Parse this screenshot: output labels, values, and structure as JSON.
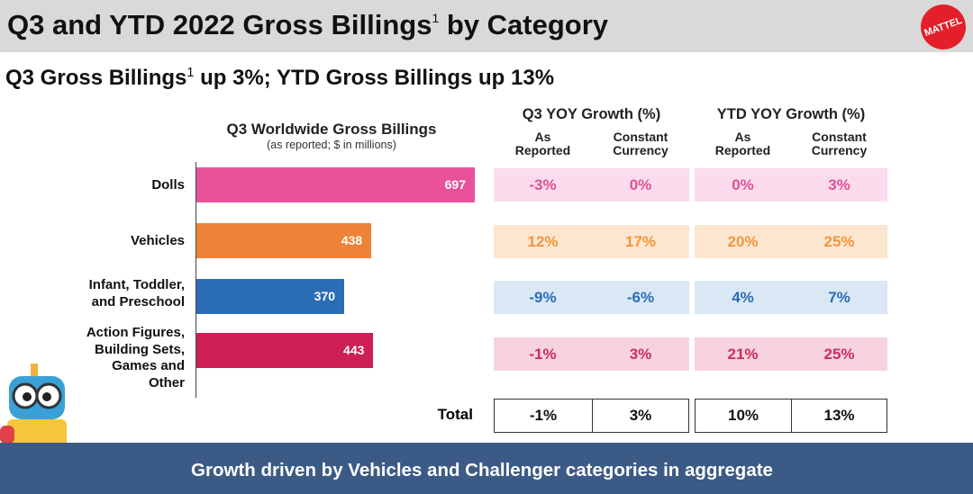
{
  "header": {
    "title": "Q3 and YTD 2022 Gross Billings",
    "title_sup": "1",
    "title_tail": " by Category",
    "logo": "MATTEL"
  },
  "subtitle": {
    "a": "Q3 Gross Billings",
    "sup": "1",
    "b": " up 3%; YTD Gross Billings up 13%"
  },
  "chart_data": {
    "type": "bar",
    "orientation": "horizontal",
    "title": "Q3 Worldwide Gross Billings",
    "subtitle": "(as reported; $ in millions)",
    "categories": [
      "Dolls",
      "Vehicles",
      "Infant, Toddler, and Preschool",
      "Action Figures, Building Sets, Games and Other"
    ],
    "category_lines": [
      [
        "Dolls"
      ],
      [
        "Vehicles"
      ],
      [
        "Infant, Toddler,",
        "and Preschool"
      ],
      [
        "Action Figures,",
        "Building Sets,",
        "Games and",
        "Other"
      ]
    ],
    "values": [
      697,
      438,
      370,
      443
    ],
    "value_labels": [
      "697",
      "438",
      "370",
      "443"
    ],
    "colors": [
      "#e9529a",
      "#ee8236",
      "#2a6db5",
      "#cc1f55"
    ]
  },
  "table": {
    "groups": [
      "Q3 YOY Growth (%)",
      "YTD YOY Growth (%)"
    ],
    "columns": [
      [
        "As",
        "Reported"
      ],
      [
        "Constant",
        "Currency"
      ],
      [
        "As",
        "Reported"
      ],
      [
        "Constant",
        "Currency"
      ]
    ],
    "rows": [
      {
        "values": [
          "-3%",
          "0%",
          "0%",
          "3%"
        ],
        "bg": "#fadcec",
        "fg": "#e05096"
      },
      {
        "values": [
          "12%",
          "17%",
          "20%",
          "25%"
        ],
        "bg": "#fde6d0",
        "fg": "#f0953d"
      },
      {
        "values": [
          "-9%",
          "-6%",
          "4%",
          "7%"
        ],
        "bg": "#dae7f5",
        "fg": "#2a6db5"
      },
      {
        "values": [
          "-1%",
          "3%",
          "21%",
          "25%"
        ],
        "bg": "#f7d3de",
        "fg": "#cc2c5e"
      }
    ],
    "total_label": "Total",
    "total": [
      "-1%",
      "3%",
      "10%",
      "13%"
    ]
  },
  "footer": {
    "text": "Growth driven by Vehicles and Challenger categories in aggregate"
  }
}
